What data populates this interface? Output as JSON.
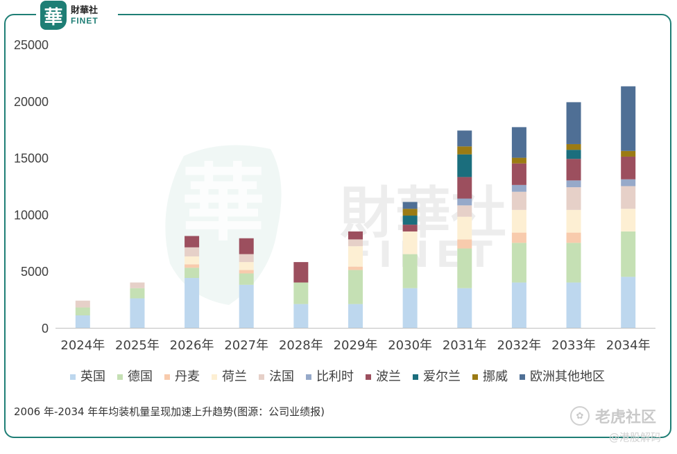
{
  "brand": {
    "mark": "華",
    "name_cn": "財華社",
    "name_en": "FINET"
  },
  "caption": "2006 年-2034 年年均装机量呈现加速上升趋势(图源：公司业绩报)",
  "watermark": {
    "center_mark": "華",
    "center_cn": "財華社",
    "center_en": "FINET",
    "site": "老虎社区",
    "sub": "@港股解码"
  },
  "colors": {
    "frame": "#1e7e75",
    "axis": "#bfbfbf",
    "text": "#404040"
  },
  "chart_data": {
    "type": "bar",
    "stacked": true,
    "title": "",
    "xlabel": "",
    "ylabel": "",
    "ylim": [
      0,
      25000
    ],
    "yticks": [
      0,
      5000,
      10000,
      15000,
      20000,
      25000
    ],
    "grid": false,
    "legend_position": "bottom",
    "categories": [
      "2024年",
      "2025年",
      "2026年",
      "2027年",
      "2028年",
      "2029年",
      "2030年",
      "2031年",
      "2032年",
      "2033年",
      "2034年"
    ],
    "series": [
      {
        "name": "英国",
        "color": "#bdd7ee",
        "values": [
          1100,
          2600,
          4400,
          3800,
          2100,
          2100,
          3500,
          3500,
          4000,
          4000,
          4500
        ]
      },
      {
        "name": "德国",
        "color": "#c5e0b4",
        "values": [
          700,
          900,
          900,
          1000,
          1900,
          3000,
          3000,
          3500,
          3500,
          3500,
          4000
        ]
      },
      {
        "name": "丹麦",
        "color": "#f8cbad",
        "values": [
          0,
          0,
          300,
          300,
          0,
          300,
          0,
          800,
          900,
          900,
          0
        ]
      },
      {
        "name": "荷兰",
        "color": "#fdefd3",
        "values": [
          0,
          0,
          700,
          700,
          0,
          1800,
          2000,
          2000,
          2000,
          2000,
          2000
        ]
      },
      {
        "name": "法国",
        "color": "#e6d0c8",
        "values": [
          600,
          500,
          800,
          700,
          0,
          600,
          0,
          1000,
          1600,
          2000,
          2000
        ]
      },
      {
        "name": "比利时",
        "color": "#96a9c9",
        "values": [
          0,
          0,
          0,
          0,
          0,
          0,
          0,
          600,
          600,
          600,
          600
        ]
      },
      {
        "name": "波兰",
        "color": "#9c4f5e",
        "values": [
          0,
          0,
          1000,
          1400,
          1800,
          700,
          600,
          1900,
          1900,
          1900,
          2000
        ]
      },
      {
        "name": "爱尔兰",
        "color": "#1b6e7d",
        "values": [
          0,
          0,
          0,
          0,
          0,
          0,
          800,
          2000,
          0,
          800,
          0
        ]
      },
      {
        "name": "挪威",
        "color": "#9b7b14",
        "values": [
          0,
          0,
          0,
          0,
          0,
          0,
          600,
          700,
          500,
          500,
          500
        ]
      },
      {
        "name": "欧洲其他地区",
        "color": "#4f6f95",
        "values": [
          0,
          0,
          0,
          0,
          0,
          0,
          600,
          1400,
          2700,
          3700,
          5700
        ]
      }
    ]
  }
}
